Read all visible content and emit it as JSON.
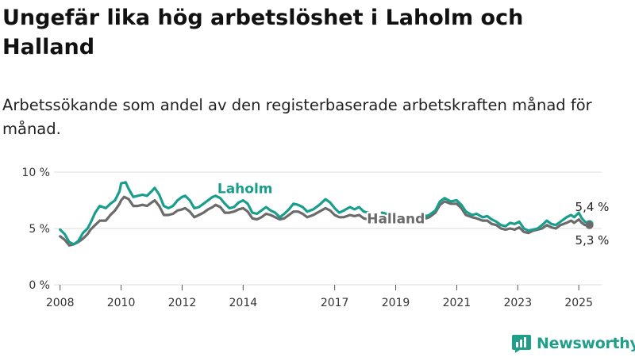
{
  "header": {
    "title": "Ungefär lika hög arbetslöshet i Laholm och Halland",
    "subtitle": "Arbetssökande som andel av den registerbaserade arbetskraften månad för månad."
  },
  "brand": {
    "name": "Newsworthy"
  },
  "colors": {
    "laholm": "#1a9e8c",
    "halland": "#6b6b6b",
    "grid": "#dddddd"
  },
  "chart_data": {
    "type": "line",
    "title": "Ungefär lika hög arbetslöshet i Laholm och Halland",
    "subtitle": "Arbetssökande som andel av den registerbaserade arbetskraften månad för månad.",
    "xlabel": "",
    "ylabel": "",
    "ylim": [
      0,
      10
    ],
    "xlim": [
      2007.8,
      2025.75
    ],
    "y_ticks": [
      0,
      5,
      10
    ],
    "y_tick_labels": [
      "0 %",
      "5 %",
      "10 %"
    ],
    "x_ticks": [
      2008,
      2010,
      2012,
      2014,
      2017,
      2019,
      2021,
      2023,
      2025
    ],
    "x_tick_labels": [
      "2008",
      "2010",
      "2012",
      "2014",
      "2017",
      "2019",
      "2021",
      "2023",
      "2025"
    ],
    "grid": true,
    "series": [
      {
        "name": "Laholm",
        "segments": [
          [
            [
              2008.0,
              4.9
            ],
            [
              2008.15,
              4.5
            ],
            [
              2008.3,
              3.8
            ],
            [
              2008.45,
              3.6
            ],
            [
              2008.6,
              3.9
            ],
            [
              2008.75,
              4.6
            ],
            [
              2008.9,
              5.0
            ],
            [
              2009.0,
              5.5
            ],
            [
              2009.15,
              6.4
            ],
            [
              2009.3,
              7.0
            ],
            [
              2009.5,
              6.8
            ],
            [
              2009.65,
              7.2
            ],
            [
              2009.8,
              7.5
            ],
            [
              2009.95,
              8.3
            ],
            [
              2010.0,
              9.0
            ],
            [
              2010.15,
              9.1
            ],
            [
              2010.25,
              8.5
            ],
            [
              2010.4,
              7.8
            ],
            [
              2010.55,
              7.9
            ],
            [
              2010.7,
              8.0
            ],
            [
              2010.85,
              7.9
            ],
            [
              2011.0,
              8.3
            ],
            [
              2011.1,
              8.6
            ],
            [
              2011.25,
              8.0
            ],
            [
              2011.4,
              7.0
            ],
            [
              2011.55,
              6.8
            ],
            [
              2011.7,
              7.0
            ],
            [
              2011.85,
              7.5
            ],
            [
              2012.0,
              7.8
            ],
            [
              2012.1,
              7.9
            ],
            [
              2012.25,
              7.5
            ],
            [
              2012.4,
              6.8
            ],
            [
              2012.55,
              6.9
            ],
            [
              2012.7,
              7.2
            ],
            [
              2012.85,
              7.5
            ],
            [
              2013.0,
              7.8
            ],
            [
              2013.1,
              7.9
            ],
            [
              2013.25,
              7.7
            ],
            [
              2013.4,
              7.2
            ],
            [
              2013.55,
              6.8
            ],
            [
              2013.7,
              6.9
            ],
            [
              2013.85,
              7.3
            ],
            [
              2014.0,
              7.5
            ],
            [
              2014.15,
              7.2
            ],
            [
              2014.3,
              6.4
            ],
            [
              2014.45,
              6.3
            ],
            [
              2014.6,
              6.6
            ],
            [
              2014.75,
              6.9
            ],
            [
              2014.9,
              6.6
            ],
            [
              2015.05,
              6.4
            ],
            [
              2015.2,
              6.0
            ],
            [
              2015.35,
              6.3
            ],
            [
              2015.5,
              6.7
            ],
            [
              2015.65,
              7.2
            ],
            [
              2015.8,
              7.1
            ],
            [
              2015.95,
              6.9
            ],
            [
              2016.1,
              6.5
            ],
            [
              2016.3,
              6.7
            ],
            [
              2016.5,
              7.1
            ],
            [
              2016.7,
              7.6
            ],
            [
              2016.85,
              7.3
            ],
            [
              2017.0,
              6.8
            ],
            [
              2017.15,
              6.4
            ],
            [
              2017.3,
              6.6
            ],
            [
              2017.5,
              6.9
            ],
            [
              2017.65,
              6.7
            ],
            [
              2017.8,
              6.9
            ],
            [
              2017.95,
              6.5
            ],
            [
              2018.1,
              6.4
            ],
            [
              2018.2,
              6.0
            ]
          ],
          [
            [
              2018.55,
              6.4
            ],
            [
              2018.7,
              6.3
            ],
            [
              2018.85,
              6.4
            ],
            [
              2018.95,
              6.3
            ]
          ],
          [
            [
              2019.85,
              6.3
            ],
            [
              2020.0,
              6.1
            ],
            [
              2020.1,
              6.2
            ],
            [
              2020.3,
              6.6
            ],
            [
              2020.45,
              7.4
            ],
            [
              2020.6,
              7.7
            ],
            [
              2020.8,
              7.4
            ],
            [
              2021.0,
              7.5
            ],
            [
              2021.15,
              7.1
            ],
            [
              2021.3,
              6.5
            ],
            [
              2021.5,
              6.2
            ],
            [
              2021.65,
              6.3
            ],
            [
              2021.85,
              6.0
            ],
            [
              2022.0,
              6.1
            ],
            [
              2022.15,
              5.8
            ],
            [
              2022.3,
              5.6
            ],
            [
              2022.45,
              5.3
            ],
            [
              2022.6,
              5.2
            ],
            [
              2022.75,
              5.5
            ],
            [
              2022.9,
              5.4
            ],
            [
              2023.05,
              5.6
            ],
            [
              2023.2,
              5.0
            ],
            [
              2023.35,
              4.8
            ],
            [
              2023.5,
              4.9
            ],
            [
              2023.65,
              5.0
            ],
            [
              2023.8,
              5.3
            ],
            [
              2023.95,
              5.7
            ],
            [
              2024.1,
              5.4
            ],
            [
              2024.25,
              5.3
            ],
            [
              2024.4,
              5.6
            ],
            [
              2024.6,
              6.0
            ],
            [
              2024.75,
              6.2
            ],
            [
              2024.85,
              6.0
            ],
            [
              2025.0,
              6.4
            ],
            [
              2025.1,
              5.9
            ],
            [
              2025.2,
              5.6
            ],
            [
              2025.35,
              5.4
            ]
          ]
        ],
        "end_value_label": "5,4 %"
      },
      {
        "name": "Halland",
        "segments": [
          [
            [
              2008.0,
              4.3
            ],
            [
              2008.15,
              4.0
            ],
            [
              2008.3,
              3.5
            ],
            [
              2008.45,
              3.6
            ],
            [
              2008.6,
              3.8
            ],
            [
              2008.75,
              4.1
            ],
            [
              2008.9,
              4.5
            ],
            [
              2009.0,
              4.9
            ],
            [
              2009.15,
              5.3
            ],
            [
              2009.3,
              5.7
            ],
            [
              2009.5,
              5.7
            ],
            [
              2009.65,
              6.2
            ],
            [
              2009.8,
              6.6
            ],
            [
              2009.95,
              7.2
            ],
            [
              2010.0,
              7.5
            ],
            [
              2010.1,
              7.8
            ],
            [
              2010.25,
              7.6
            ],
            [
              2010.4,
              7.0
            ],
            [
              2010.55,
              7.0
            ],
            [
              2010.7,
              7.1
            ],
            [
              2010.85,
              7.0
            ],
            [
              2011.0,
              7.3
            ],
            [
              2011.1,
              7.5
            ],
            [
              2011.25,
              7.0
            ],
            [
              2011.4,
              6.2
            ],
            [
              2011.55,
              6.2
            ],
            [
              2011.7,
              6.3
            ],
            [
              2011.85,
              6.6
            ],
            [
              2012.0,
              6.7
            ],
            [
              2012.1,
              6.8
            ],
            [
              2012.25,
              6.5
            ],
            [
              2012.4,
              6.0
            ],
            [
              2012.55,
              6.2
            ],
            [
              2012.7,
              6.4
            ],
            [
              2012.85,
              6.7
            ],
            [
              2013.0,
              6.9
            ],
            [
              2013.1,
              7.1
            ],
            [
              2013.25,
              6.9
            ],
            [
              2013.4,
              6.4
            ],
            [
              2013.55,
              6.4
            ],
            [
              2013.7,
              6.5
            ],
            [
              2013.85,
              6.7
            ],
            [
              2014.0,
              6.8
            ],
            [
              2014.15,
              6.5
            ],
            [
              2014.3,
              5.9
            ],
            [
              2014.45,
              5.8
            ],
            [
              2014.6,
              6.0
            ],
            [
              2014.75,
              6.3
            ],
            [
              2014.9,
              6.2
            ],
            [
              2015.05,
              6.0
            ],
            [
              2015.2,
              5.8
            ],
            [
              2015.35,
              5.9
            ],
            [
              2015.5,
              6.2
            ],
            [
              2015.65,
              6.5
            ],
            [
              2015.8,
              6.5
            ],
            [
              2015.95,
              6.3
            ],
            [
              2016.1,
              6.0
            ],
            [
              2016.3,
              6.2
            ],
            [
              2016.5,
              6.5
            ],
            [
              2016.7,
              6.8
            ],
            [
              2016.85,
              6.6
            ],
            [
              2017.0,
              6.2
            ],
            [
              2017.15,
              6.0
            ],
            [
              2017.3,
              6.0
            ],
            [
              2017.5,
              6.2
            ],
            [
              2017.65,
              6.1
            ],
            [
              2017.8,
              6.2
            ],
            [
              2017.95,
              5.9
            ],
            [
              2018.1,
              5.8
            ],
            [
              2018.2,
              5.5
            ]
          ],
          [
            [
              2019.85,
              6.0
            ],
            [
              2020.0,
              5.9
            ],
            [
              2020.1,
              6.0
            ],
            [
              2020.3,
              6.4
            ],
            [
              2020.45,
              7.1
            ],
            [
              2020.6,
              7.4
            ],
            [
              2020.8,
              7.2
            ],
            [
              2021.0,
              7.2
            ],
            [
              2021.15,
              6.8
            ],
            [
              2021.3,
              6.2
            ],
            [
              2021.5,
              6.0
            ],
            [
              2021.65,
              5.9
            ],
            [
              2021.85,
              5.7
            ],
            [
              2022.0,
              5.7
            ],
            [
              2022.15,
              5.4
            ],
            [
              2022.3,
              5.3
            ],
            [
              2022.45,
              5.0
            ],
            [
              2022.6,
              4.9
            ],
            [
              2022.75,
              5.0
            ],
            [
              2022.9,
              4.9
            ],
            [
              2023.05,
              5.1
            ],
            [
              2023.2,
              4.7
            ],
            [
              2023.35,
              4.6
            ],
            [
              2023.5,
              4.8
            ],
            [
              2023.65,
              4.9
            ],
            [
              2023.8,
              5.0
            ],
            [
              2023.95,
              5.3
            ],
            [
              2024.1,
              5.1
            ],
            [
              2024.25,
              5.0
            ],
            [
              2024.4,
              5.3
            ],
            [
              2024.6,
              5.5
            ],
            [
              2024.75,
              5.7
            ],
            [
              2024.85,
              5.5
            ],
            [
              2025.0,
              5.8
            ],
            [
              2025.1,
              5.5
            ],
            [
              2025.2,
              5.3
            ],
            [
              2025.35,
              5.3
            ]
          ]
        ],
        "end_value_label": "5,3 %"
      }
    ],
    "annotations": [
      {
        "text": "Laholm",
        "series": "Laholm",
        "x": 2013.0,
        "y": 8.0
      },
      {
        "text": "Halland",
        "series": "Halland",
        "x": 2017.9,
        "y": 5.3
      }
    ]
  }
}
